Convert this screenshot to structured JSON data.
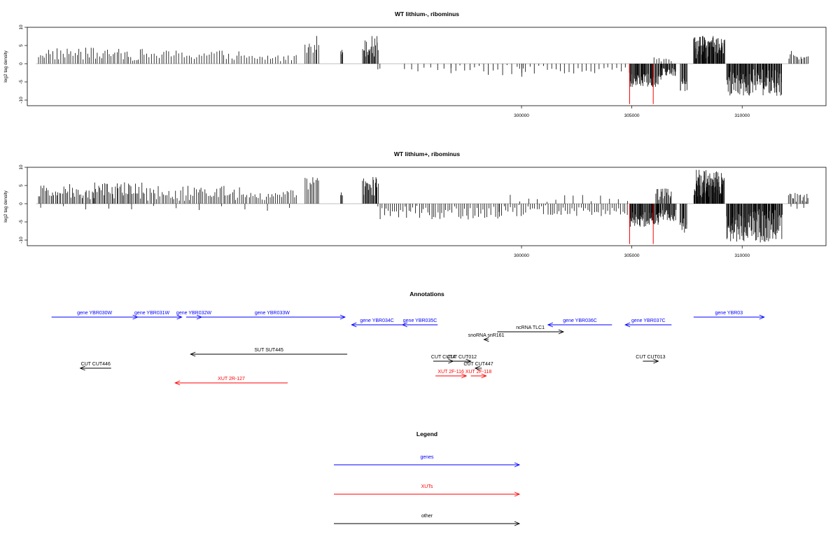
{
  "chart_data": [
    {
      "type": "bar",
      "title": "WT lithium-, ribominus",
      "ylabel": "log2 tag density",
      "xlim": [
        277600,
        313800
      ],
      "ylim": [
        -11.5,
        10
      ],
      "yticks": [
        -10,
        -5,
        0,
        5,
        10
      ],
      "xticks": [
        300000,
        305000,
        310000
      ],
      "baseline_range": [
        278000,
        313000
      ],
      "red_markers": [
        {
          "x": 304900,
          "y": -11.3
        },
        {
          "x": 305970,
          "y": -11.3
        }
      ],
      "clusters": [
        {
          "from": 278100,
          "to": 280600,
          "sign": 1,
          "n": 28,
          "lo": 0.8,
          "hi": 4.5
        },
        {
          "from": 280600,
          "to": 301000,
          "sign": 1,
          "n": 0,
          "lo": 0,
          "hi": 0
        },
        {
          "from": 280700,
          "to": 282900,
          "sign": 1,
          "n": 26,
          "lo": 0.8,
          "hi": 4.2
        },
        {
          "from": 283000,
          "to": 287200,
          "sign": 1,
          "n": 38,
          "lo": 0.8,
          "hi": 3.8
        },
        {
          "from": 287300,
          "to": 289800,
          "sign": 1,
          "n": 22,
          "lo": 0.5,
          "hi": 2.6
        },
        {
          "from": 290200,
          "to": 290800,
          "sign": 1,
          "n": 10,
          "lo": 3.0,
          "hi": 8.2
        },
        {
          "from": 291800,
          "to": 291900,
          "sign": 1,
          "n": 4,
          "lo": 2.0,
          "hi": 4.0
        },
        {
          "from": 292800,
          "to": 293500,
          "sign": 1,
          "n": 22,
          "lo": 2.0,
          "hi": 7.8
        },
        {
          "from": 293500,
          "to": 293600,
          "sign": -1,
          "n": 2,
          "lo": 0.5,
          "hi": 1.6
        },
        {
          "from": 294700,
          "to": 296800,
          "sign": -1,
          "n": 8,
          "lo": 0.3,
          "hi": 2.2
        },
        {
          "from": 296800,
          "to": 300000,
          "sign": -1,
          "n": 16,
          "lo": 0.3,
          "hi": 3.8
        },
        {
          "from": 300000,
          "to": 304900,
          "sign": -1,
          "n": 26,
          "lo": 0.3,
          "hi": 2.8
        },
        {
          "from": 299900,
          "to": 300100,
          "sign": -1,
          "n": 2,
          "lo": 0.5,
          "hi": 1.5
        },
        {
          "from": 304900,
          "to": 306300,
          "sign": -1,
          "n": 60,
          "lo": 2.0,
          "hi": 6.5
        },
        {
          "from": 306300,
          "to": 307000,
          "sign": -1,
          "n": 30,
          "lo": 1.0,
          "hi": 3.5
        },
        {
          "from": 306000,
          "to": 306800,
          "sign": 1,
          "n": 8,
          "lo": 0.5,
          "hi": 1.8
        },
        {
          "from": 307200,
          "to": 307500,
          "sign": -1,
          "n": 12,
          "lo": 4.0,
          "hi": 8.0
        },
        {
          "from": 307800,
          "to": 309200,
          "sign": 1,
          "n": 80,
          "lo": 1.5,
          "hi": 7.8
        },
        {
          "from": 309300,
          "to": 311800,
          "sign": -1,
          "n": 110,
          "lo": 1.5,
          "hi": 9.0
        },
        {
          "from": 312100,
          "to": 313000,
          "sign": 1,
          "n": 14,
          "lo": 0.5,
          "hi": 3.8
        }
      ]
    },
    {
      "type": "bar",
      "title": "WT lithium+, ribominus",
      "ylabel": "log2 tag density",
      "xlim": [
        277600,
        313800
      ],
      "ylim": [
        -11.5,
        10
      ],
      "yticks": [
        -10,
        -5,
        0,
        5,
        10
      ],
      "xticks": [
        300000,
        305000,
        310000
      ],
      "baseline_range": [
        278000,
        313000
      ],
      "red_markers": [
        {
          "x": 304900,
          "y": -11.3
        },
        {
          "x": 305970,
          "y": -11.3
        }
      ],
      "clusters": [
        {
          "from": 278100,
          "to": 280600,
          "sign": 1,
          "n": 40,
          "lo": 0.8,
          "hi": 5.5
        },
        {
          "from": 280600,
          "to": 282900,
          "sign": 1,
          "n": 40,
          "lo": 1.0,
          "hi": 6.0
        },
        {
          "from": 283000,
          "to": 287200,
          "sign": 1,
          "n": 55,
          "lo": 0.8,
          "hi": 5.2
        },
        {
          "from": 287300,
          "to": 289800,
          "sign": 1,
          "n": 30,
          "lo": 0.5,
          "hi": 3.8
        },
        {
          "from": 278200,
          "to": 289500,
          "sign": -1,
          "n": 12,
          "lo": 0.3,
          "hi": 2.2
        },
        {
          "from": 290200,
          "to": 290800,
          "sign": 1,
          "n": 10,
          "lo": 3.0,
          "hi": 7.5
        },
        {
          "from": 291800,
          "to": 291900,
          "sign": 1,
          "n": 4,
          "lo": 2.0,
          "hi": 3.5
        },
        {
          "from": 292800,
          "to": 293500,
          "sign": 1,
          "n": 22,
          "lo": 2.0,
          "hi": 7.5
        },
        {
          "from": 293500,
          "to": 299000,
          "sign": -1,
          "n": 60,
          "lo": 0.5,
          "hi": 4.5
        },
        {
          "from": 299000,
          "to": 304900,
          "sign": -1,
          "n": 60,
          "lo": 0.3,
          "hi": 3.5
        },
        {
          "from": 299500,
          "to": 304800,
          "sign": 1,
          "n": 14,
          "lo": 0.3,
          "hi": 2.5
        },
        {
          "from": 304900,
          "to": 306300,
          "sign": -1,
          "n": 60,
          "lo": 2.0,
          "hi": 6.5
        },
        {
          "from": 306300,
          "to": 307000,
          "sign": -1,
          "n": 30,
          "lo": 1.0,
          "hi": 5.0
        },
        {
          "from": 306100,
          "to": 306800,
          "sign": 1,
          "n": 18,
          "lo": 1.0,
          "hi": 4.5
        },
        {
          "from": 307200,
          "to": 307500,
          "sign": -1,
          "n": 12,
          "lo": 4.0,
          "hi": 9.0
        },
        {
          "from": 307800,
          "to": 309200,
          "sign": 1,
          "n": 90,
          "lo": 1.5,
          "hi": 9.5
        },
        {
          "from": 309300,
          "to": 311800,
          "sign": -1,
          "n": 130,
          "lo": 1.5,
          "hi": 11.0
        },
        {
          "from": 312100,
          "to": 313000,
          "sign": 1,
          "n": 16,
          "lo": 0.5,
          "hi": 3.0
        },
        {
          "from": 312200,
          "to": 312800,
          "sign": -1,
          "n": 3,
          "lo": 0.5,
          "hi": 2.0
        }
      ]
    }
  ],
  "annotations": {
    "title": "Annotations",
    "items": [
      {
        "label": "gene YBR030W",
        "color": "#0000ff",
        "dir": "right",
        "from": 278700,
        "to": 282600,
        "row": 0,
        "label_at": "above"
      },
      {
        "label": "gene YBR031W",
        "color": "#0000ff",
        "dir": "right",
        "from": 281900,
        "to": 284600,
        "row": 0,
        "label_at": "above"
      },
      {
        "label": "gene YBR032W",
        "color": "#0000ff",
        "dir": "right",
        "from": 284800,
        "to": 285500,
        "row": 0,
        "label_at": "above"
      },
      {
        "label": "gene YBR033W",
        "color": "#0000ff",
        "dir": "right",
        "from": 285400,
        "to": 292000,
        "row": 0,
        "label_at": "above"
      },
      {
        "label": "gene YBR034C",
        "color": "#0000ff",
        "dir": "left",
        "from": 292300,
        "to": 294600,
        "row": 1,
        "label_at": "above"
      },
      {
        "label": "gene YBR035C",
        "color": "#0000ff",
        "dir": "left",
        "from": 294600,
        "to": 296200,
        "row": 1,
        "label_at": "above"
      },
      {
        "label": "gene YBR036C",
        "color": "#0000ff",
        "dir": "left",
        "from": 301200,
        "to": 304100,
        "row": 1,
        "label_at": "above"
      },
      {
        "label": "gene YBR037C",
        "color": "#0000ff",
        "dir": "left",
        "from": 304700,
        "to": 306800,
        "row": 1,
        "label_at": "above"
      },
      {
        "label": "gene YBR03",
        "color": "#0000ff",
        "dir": "right",
        "from": 307800,
        "to": 311000,
        "row": 0,
        "label_at": "above"
      },
      {
        "label": "ncRNA TLC1",
        "color": "#000000",
        "dir": "right",
        "from": 298900,
        "to": 301900,
        "row": 2,
        "label_at": "above"
      },
      {
        "label": "snoRNA snR161",
        "color": "#000000",
        "dir": "left",
        "from": 298300,
        "to": 298500,
        "row": 3,
        "label_at": "above"
      },
      {
        "label": "SUT SUT445",
        "color": "#000000",
        "dir": "left",
        "from": 285000,
        "to": 292100,
        "row": 4,
        "label_at": "above"
      },
      {
        "label": "CUT CUT446",
        "color": "#000000",
        "dir": "left",
        "from": 280000,
        "to": 281400,
        "row": 6,
        "label_at": "above"
      },
      {
        "label": "CUT CUT4",
        "color": "#000000",
        "dir": "right",
        "from": 296000,
        "to": 296900,
        "row": 5,
        "label_at": "above"
      },
      {
        "label": "CUT CUT012",
        "color": "#000000",
        "dir": "right",
        "from": 296900,
        "to": 297700,
        "row": 5,
        "label_at": "above"
      },
      {
        "label": "CUT CUT447",
        "color": "#000000",
        "dir": "left",
        "from": 297900,
        "to": 298200,
        "row": 6,
        "label_at": "above"
      },
      {
        "label": "CUT CUT013",
        "color": "#000000",
        "dir": "right",
        "from": 305500,
        "to": 306200,
        "row": 5,
        "label_at": "above"
      },
      {
        "label": "XUT 2F-116",
        "color": "#ff0000",
        "dir": "right",
        "from": 296100,
        "to": 297500,
        "row": 7,
        "label_at": "above"
      },
      {
        "label": "XUT 2F-118",
        "color": "#ff0000",
        "dir": "right",
        "from": 297700,
        "to": 298400,
        "row": 7,
        "label_at": "above"
      },
      {
        "label": "XUT 2R-127",
        "color": "#ff0000",
        "dir": "left",
        "from": 284300,
        "to": 289400,
        "row": 8,
        "label_at": "above"
      }
    ]
  },
  "legend": {
    "title": "Legend",
    "items": [
      {
        "label": "genes",
        "color": "#0000ff"
      },
      {
        "label": "XUTs",
        "color": "#ff0000"
      },
      {
        "label": "other",
        "color": "#000000"
      }
    ]
  }
}
